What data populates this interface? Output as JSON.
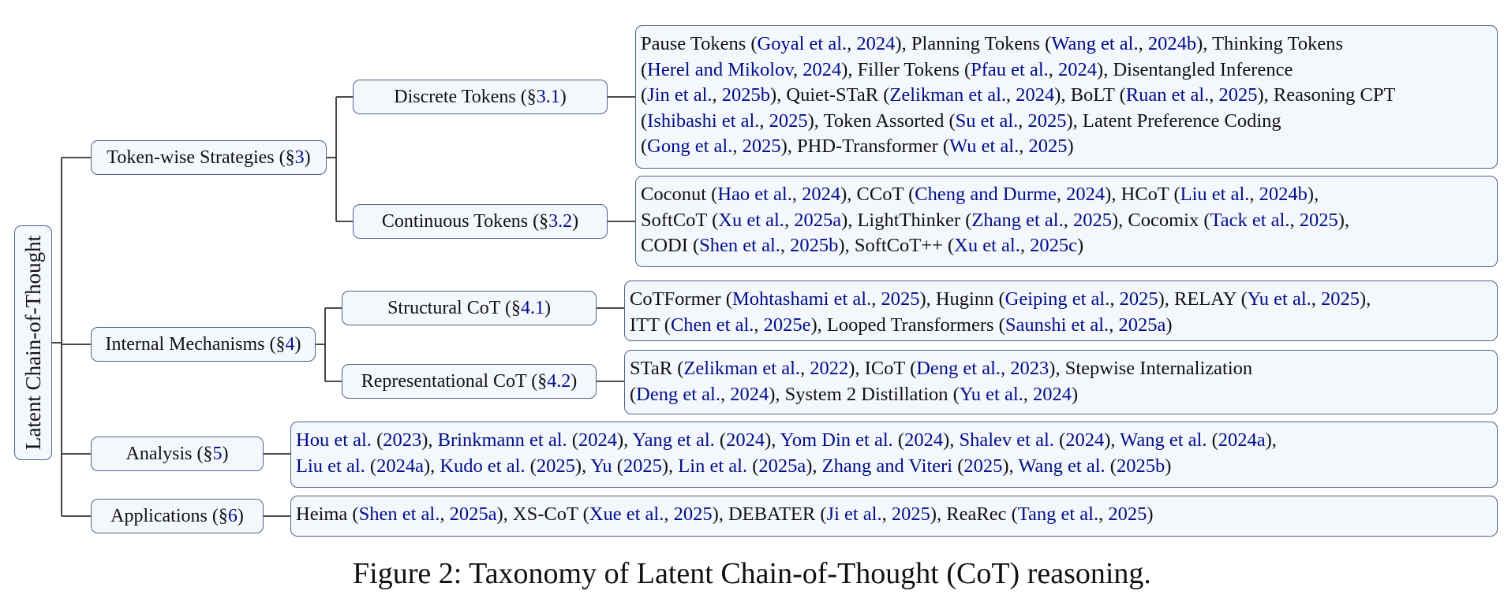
{
  "root": {
    "label": "Latent Chain-of-Thought"
  },
  "categories": [
    {
      "id": "token",
      "label": "Token-wise Strategies (§",
      "sec": "3",
      "close": ")"
    },
    {
      "id": "internal",
      "label": "Internal Mechanisms (§",
      "sec": "4",
      "close": ")"
    },
    {
      "id": "analysis",
      "label": "Analysis (§",
      "sec": "5",
      "close": ")"
    },
    {
      "id": "applications",
      "label": "Applications (§",
      "sec": "6",
      "close": ")"
    }
  ],
  "subcategories": [
    {
      "id": "discrete",
      "label": "Discrete Tokens (§",
      "sec": "3.1",
      "close": ")"
    },
    {
      "id": "continuous",
      "label": "Continuous Tokens (§",
      "sec": "3.2",
      "close": ")"
    },
    {
      "id": "structural",
      "label": "Structural CoT (§",
      "sec": "4.1",
      "close": ")"
    },
    {
      "id": "representational",
      "label": "Representational CoT (§",
      "sec": "4.2",
      "close": ")"
    }
  ],
  "leaves": {
    "discrete": [
      {
        "t": "Pause Tokens ("
      },
      {
        "r": "Goyal et al."
      },
      {
        "t": ", "
      },
      {
        "r": "2024"
      },
      {
        "t": "), Planning Tokens ("
      },
      {
        "r": "Wang et al."
      },
      {
        "t": ", "
      },
      {
        "r": "2024b"
      },
      {
        "t": "), Thinking Tokens"
      },
      {
        "br": true
      },
      {
        "t": "("
      },
      {
        "r": "Herel and Mikolov"
      },
      {
        "t": ", "
      },
      {
        "r": "2024"
      },
      {
        "t": "), Filler Tokens ("
      },
      {
        "r": "Pfau et al."
      },
      {
        "t": ", "
      },
      {
        "r": "2024"
      },
      {
        "t": "), Disentangled Inference"
      },
      {
        "br": true
      },
      {
        "t": "("
      },
      {
        "r": "Jin et al."
      },
      {
        "t": ", "
      },
      {
        "r": "2025b"
      },
      {
        "t": "), Quiet-STaR ("
      },
      {
        "r": "Zelikman et al."
      },
      {
        "t": ", "
      },
      {
        "r": "2024"
      },
      {
        "t": "), BoLT ("
      },
      {
        "r": "Ruan et al."
      },
      {
        "t": ", "
      },
      {
        "r": "2025"
      },
      {
        "t": "), Reasoning CPT"
      },
      {
        "br": true
      },
      {
        "t": "("
      },
      {
        "r": "Ishibashi et al."
      },
      {
        "t": ", "
      },
      {
        "r": "2025"
      },
      {
        "t": "), Token Assorted ("
      },
      {
        "r": "Su et al."
      },
      {
        "t": ", "
      },
      {
        "r": "2025"
      },
      {
        "t": "), Latent Preference Coding"
      },
      {
        "br": true
      },
      {
        "t": "("
      },
      {
        "r": "Gong et al."
      },
      {
        "t": ", "
      },
      {
        "r": "2025"
      },
      {
        "t": "), PHD-Transformer ("
      },
      {
        "r": "Wu et al."
      },
      {
        "t": ", "
      },
      {
        "r": "2025"
      },
      {
        "t": ")"
      }
    ],
    "continuous": [
      {
        "t": "Coconut ("
      },
      {
        "r": "Hao et al."
      },
      {
        "t": ", "
      },
      {
        "r": "2024"
      },
      {
        "t": "), CCoT ("
      },
      {
        "r": "Cheng and Durme"
      },
      {
        "t": ", "
      },
      {
        "r": "2024"
      },
      {
        "t": "), HCoT ("
      },
      {
        "r": "Liu et al."
      },
      {
        "t": ", "
      },
      {
        "r": "2024b"
      },
      {
        "t": "),"
      },
      {
        "br": true
      },
      {
        "t": "SoftCoT ("
      },
      {
        "r": "Xu et al."
      },
      {
        "t": ", "
      },
      {
        "r": "2025a"
      },
      {
        "t": "), LightThinker ("
      },
      {
        "r": "Zhang et al."
      },
      {
        "t": ", "
      },
      {
        "r": "2025"
      },
      {
        "t": "), Cocomix ("
      },
      {
        "r": "Tack et al."
      },
      {
        "t": ", "
      },
      {
        "r": "2025"
      },
      {
        "t": "),"
      },
      {
        "br": true
      },
      {
        "t": "CODI ("
      },
      {
        "r": "Shen et al."
      },
      {
        "t": ", "
      },
      {
        "r": "2025b"
      },
      {
        "t": "), SoftCoT++ ("
      },
      {
        "r": "Xu et al."
      },
      {
        "t": ", "
      },
      {
        "r": "2025c"
      },
      {
        "t": ")"
      }
    ],
    "structural": [
      {
        "t": "CoTFormer ("
      },
      {
        "r": "Mohtashami et al."
      },
      {
        "t": ", "
      },
      {
        "r": "2025"
      },
      {
        "t": "), Huginn ("
      },
      {
        "r": "Geiping et al."
      },
      {
        "t": ", "
      },
      {
        "r": "2025"
      },
      {
        "t": "), RELAY ("
      },
      {
        "r": "Yu et al."
      },
      {
        "t": ", "
      },
      {
        "r": "2025"
      },
      {
        "t": "),"
      },
      {
        "br": true
      },
      {
        "t": "ITT ("
      },
      {
        "r": "Chen et al."
      },
      {
        "t": ", "
      },
      {
        "r": "2025e"
      },
      {
        "t": "), Looped Transformers ("
      },
      {
        "r": "Saunshi et al."
      },
      {
        "t": ", "
      },
      {
        "r": "2025a"
      },
      {
        "t": ")"
      }
    ],
    "representational": [
      {
        "t": "STaR ("
      },
      {
        "r": "Zelikman et al."
      },
      {
        "t": ", "
      },
      {
        "r": "2022"
      },
      {
        "t": "), ICoT ("
      },
      {
        "r": "Deng et al."
      },
      {
        "t": ", "
      },
      {
        "r": "2023"
      },
      {
        "t": "), Stepwise Internalization"
      },
      {
        "br": true
      },
      {
        "t": "("
      },
      {
        "r": "Deng et al."
      },
      {
        "t": ", "
      },
      {
        "r": "2024"
      },
      {
        "t": "), System 2 Distillation ("
      },
      {
        "r": "Yu et al."
      },
      {
        "t": ", "
      },
      {
        "r": "2024"
      },
      {
        "t": ")"
      }
    ],
    "analysis": [
      {
        "r": "Hou et al."
      },
      {
        "t": " ("
      },
      {
        "r": "2023"
      },
      {
        "t": "), "
      },
      {
        "r": "Brinkmann et al."
      },
      {
        "t": " ("
      },
      {
        "r": "2024"
      },
      {
        "t": "), "
      },
      {
        "r": "Yang et al."
      },
      {
        "t": " ("
      },
      {
        "r": "2024"
      },
      {
        "t": "), "
      },
      {
        "r": "Yom Din et al."
      },
      {
        "t": " ("
      },
      {
        "r": "2024"
      },
      {
        "t": "), "
      },
      {
        "r": "Shalev et al."
      },
      {
        "t": " ("
      },
      {
        "r": "2024"
      },
      {
        "t": "), "
      },
      {
        "r": "Wang et al."
      },
      {
        "t": " ("
      },
      {
        "r": "2024a"
      },
      {
        "t": "),"
      },
      {
        "br": true
      },
      {
        "r": "Liu et al."
      },
      {
        "t": " ("
      },
      {
        "r": "2024a"
      },
      {
        "t": "), "
      },
      {
        "r": "Kudo et al."
      },
      {
        "t": " ("
      },
      {
        "r": "2025"
      },
      {
        "t": "), "
      },
      {
        "r": "Yu"
      },
      {
        "t": " ("
      },
      {
        "r": "2025"
      },
      {
        "t": "), "
      },
      {
        "r": "Lin et al."
      },
      {
        "t": " ("
      },
      {
        "r": "2025a"
      },
      {
        "t": "), "
      },
      {
        "r": "Zhang and Viteri"
      },
      {
        "t": " ("
      },
      {
        "r": "2025"
      },
      {
        "t": "), "
      },
      {
        "r": "Wang et al."
      },
      {
        "t": " ("
      },
      {
        "r": "2025b"
      },
      {
        "t": ")"
      }
    ],
    "applications": [
      {
        "t": "Heima ("
      },
      {
        "r": "Shen et al."
      },
      {
        "t": ", "
      },
      {
        "r": "2025a"
      },
      {
        "t": "), XS-CoT ("
      },
      {
        "r": "Xue et al."
      },
      {
        "t": ", "
      },
      {
        "r": "2025"
      },
      {
        "t": "), DEBATER ("
      },
      {
        "r": "Ji et al."
      },
      {
        "t": ", "
      },
      {
        "r": "2025"
      },
      {
        "t": "), ReaRec ("
      },
      {
        "r": "Tang et al."
      },
      {
        "t": ", "
      },
      {
        "r": "2025"
      },
      {
        "t": ")"
      }
    ]
  },
  "caption": "Figure 2: Taxonomy of Latent Chain-of-Thought (CoT) reasoning.",
  "colors": {
    "link": "#000e8a",
    "border": "#4f6489",
    "fill": "#f4f7fc",
    "line": "#333333"
  }
}
